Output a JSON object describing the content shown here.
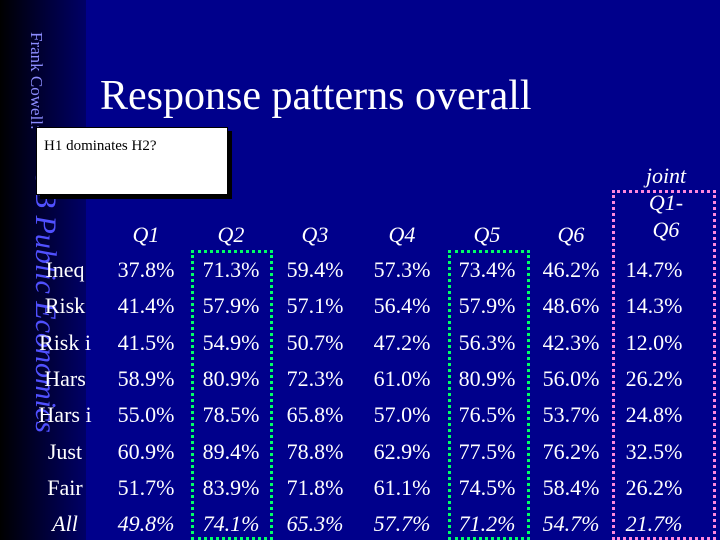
{
  "slide": {
    "author_vertical": "Frank Cowell:",
    "subtitle_vertical": "UB Public Economics",
    "title": "Response patterns overall",
    "tooltip": "H1 dominates H2?"
  },
  "table": {
    "columns": [
      "Q1",
      "Q2",
      "Q3",
      "Q4",
      "Q5",
      "Q6"
    ],
    "joint_header": [
      "joint",
      "Q1-",
      "Q6"
    ],
    "rows": [
      {
        "label": "Ineq",
        "values": [
          "37.8%",
          "71.3%",
          "59.4%",
          "57.3%",
          "73.4%",
          "46.2%",
          "14.7%"
        ]
      },
      {
        "label": "Risk",
        "values": [
          "41.4%",
          "57.9%",
          "57.1%",
          "56.4%",
          "57.9%",
          "48.6%",
          "14.3%"
        ]
      },
      {
        "label": "Risk i",
        "values": [
          "41.5%",
          "54.9%",
          "50.7%",
          "47.2%",
          "56.3%",
          "42.3%",
          "12.0%"
        ]
      },
      {
        "label": "Hars",
        "values": [
          "58.9%",
          "80.9%",
          "72.3%",
          "61.0%",
          "80.9%",
          "56.0%",
          "26.2%"
        ]
      },
      {
        "label": "Hars i",
        "values": [
          "55.0%",
          "78.5%",
          "65.8%",
          "57.0%",
          "76.5%",
          "53.7%",
          "24.8%"
        ]
      },
      {
        "label": "Just",
        "values": [
          "60.9%",
          "89.4%",
          "78.8%",
          "62.9%",
          "77.5%",
          "76.2%",
          "32.5%"
        ]
      },
      {
        "label": "Fair",
        "values": [
          "51.7%",
          "83.9%",
          "71.8%",
          "61.1%",
          "74.5%",
          "58.4%",
          "26.2%"
        ]
      },
      {
        "label": "All",
        "values": [
          "49.8%",
          "74.1%",
          "65.3%",
          "57.7%",
          "71.2%",
          "54.7%",
          "21.7%"
        ]
      }
    ]
  },
  "colors": {
    "background": "#00008b",
    "highlight_green": "#00ff66",
    "highlight_pink": "#ff88dd"
  }
}
